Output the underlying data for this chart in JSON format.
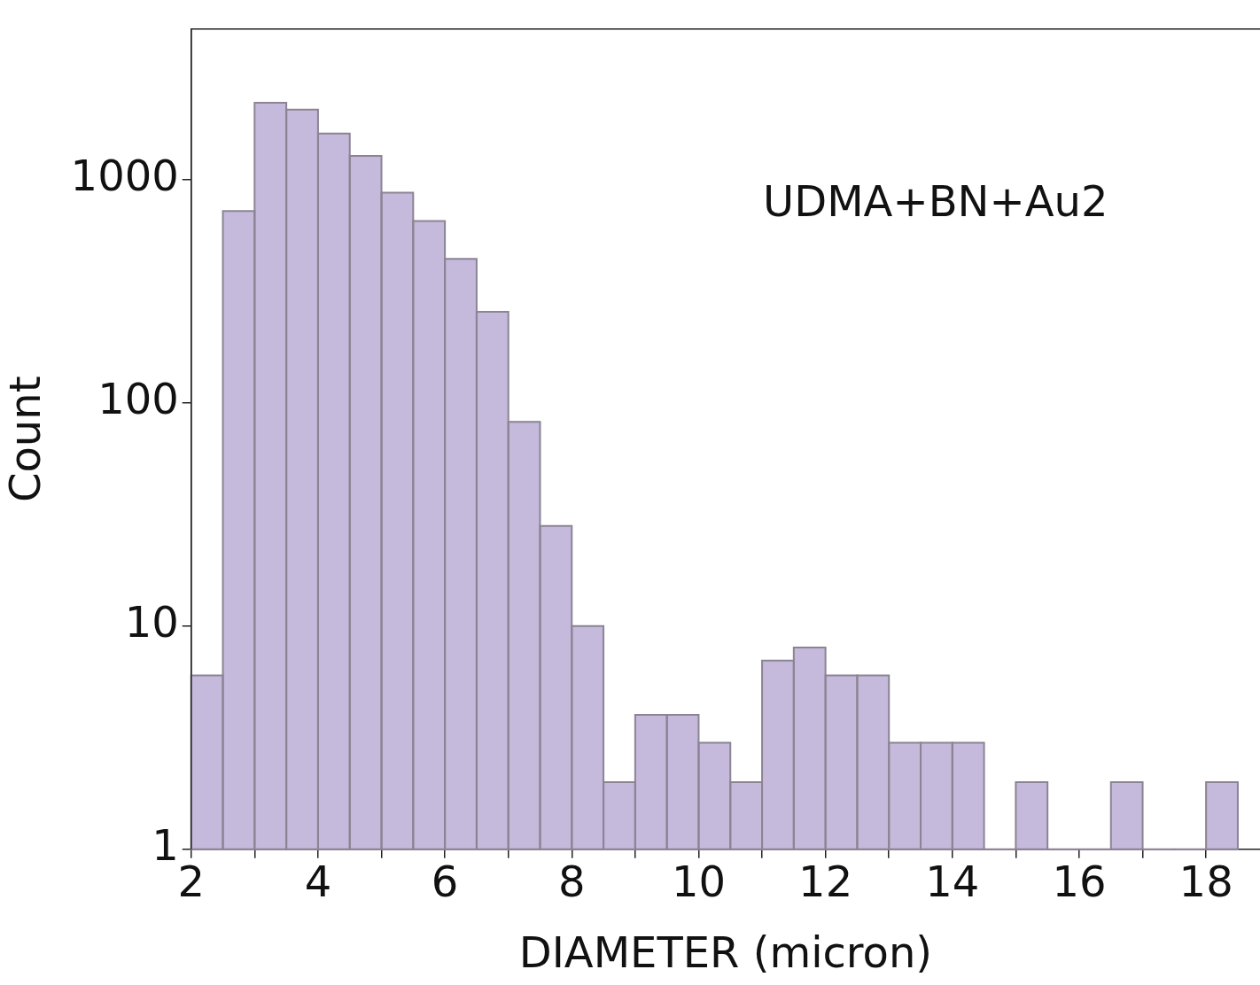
{
  "chart_data": {
    "type": "histogram",
    "xlabel": "DIAMETER (micron)",
    "ylabel": "Count",
    "annotations": [
      "UDMA+BN+Au2"
    ],
    "bins": [
      2,
      2.5,
      3,
      3.5,
      4,
      4.5,
      5,
      5.5,
      6,
      6.5,
      7,
      7.5,
      8,
      8.5,
      9,
      9.5,
      10,
      10.5,
      11,
      11.5,
      12,
      12.5,
      13,
      13.5,
      14,
      14.5,
      15,
      15.5,
      16,
      16.5,
      17,
      17.5,
      18,
      18.5
    ],
    "values": [
      6,
      720,
      2200,
      2050,
      1600,
      1270,
      870,
      650,
      440,
      255,
      82,
      28,
      10,
      2,
      4,
      4,
      3,
      2,
      7,
      8,
      6,
      6,
      3,
      3,
      3,
      null,
      2,
      null,
      null,
      2,
      null,
      null,
      2
    ],
    "color": "#c5b9dc",
    "log": "y",
    "grid": false,
    "legend": false,
    "xlim": [
      2,
      18.85
    ],
    "ylim": [
      1,
      4700
    ],
    "xticks": [
      2,
      {
        "value": 3,
        "label": null
      },
      4,
      {
        "value": 5,
        "label": null
      },
      6,
      {
        "value": 7,
        "label": null
      },
      8,
      {
        "value": 9,
        "label": null
      },
      10,
      {
        "value": 11,
        "label": null
      },
      12,
      {
        "value": 13,
        "label": null
      },
      14,
      {
        "value": 15,
        "label": null
      },
      16,
      {
        "value": 17,
        "label": null
      },
      18
    ],
    "yticks": [
      1,
      10,
      100,
      1000
    ]
  }
}
